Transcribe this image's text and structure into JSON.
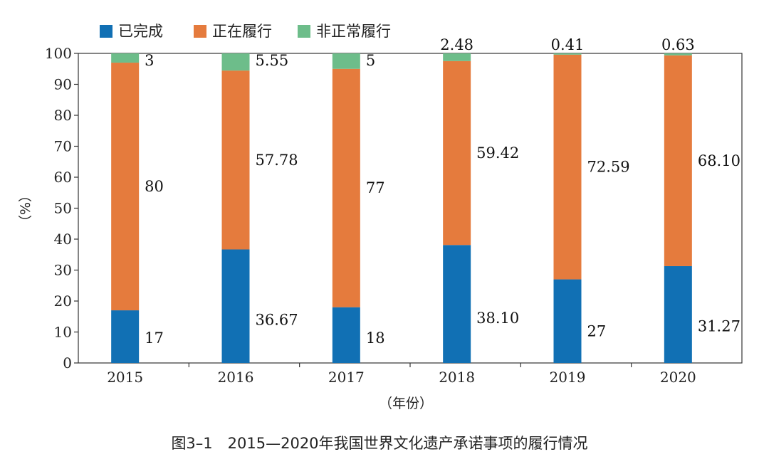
{
  "chart_data": {
    "type": "bar",
    "stacked": true,
    "title": "",
    "caption": "图3–1　2015—2020年我国世界文化遗产承诺事项的履行情况",
    "xlabel": "（年份）",
    "ylabel": "（%）",
    "ylim": [
      0,
      100
    ],
    "yticks": [
      "0",
      "10",
      "20",
      "30",
      "40",
      "50",
      "60",
      "70",
      "80",
      "90",
      "100"
    ],
    "grid": false,
    "legend_position": "top-left",
    "categories": [
      "2015",
      "2016",
      "2017",
      "2018",
      "2019",
      "2020"
    ],
    "series": [
      {
        "name": "已完成",
        "color": "#1170b4",
        "values": [
          17,
          36.67,
          18,
          38.1,
          27,
          31.27
        ],
        "labels": [
          "17",
          "36.67",
          "18",
          "38.10",
          "27",
          "31.27"
        ]
      },
      {
        "name": "正在履行",
        "color": "#e57b3d",
        "values": [
          80,
          57.78,
          77,
          59.42,
          72.59,
          68.1
        ],
        "labels": [
          "80",
          "57.78",
          "77",
          "59.42",
          "72.59",
          "68.10"
        ]
      },
      {
        "name": "非正常履行",
        "color": "#6dbd8a",
        "values": [
          3,
          5.55,
          5,
          2.48,
          0.41,
          0.63
        ],
        "labels": [
          "3",
          "5.55",
          "5",
          "2.48",
          "0.41",
          "0.63"
        ]
      }
    ]
  }
}
